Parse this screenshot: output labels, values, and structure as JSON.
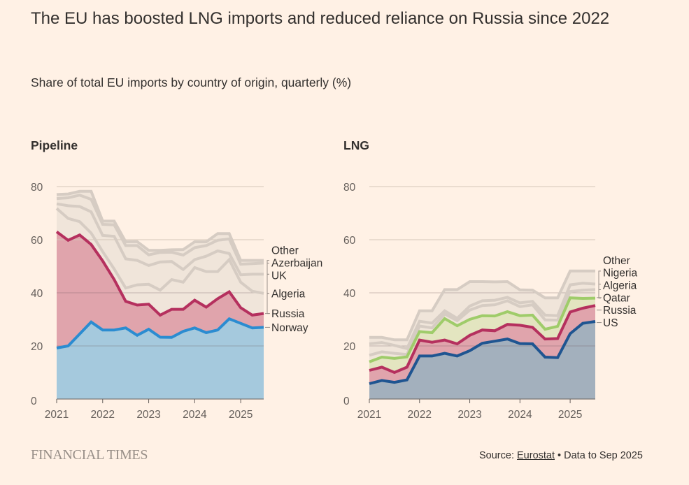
{
  "title": "The EU has boosted LNG imports and reduced reliance on Russia since 2022",
  "subtitle": "Share of total EU imports by country of origin, quarterly (%)",
  "footer": {
    "logo": "FINANCIAL TIMES",
    "source_prefix": "Source: ",
    "source_link": "Eurostat",
    "source_suffix": " • Data to Sep 2025"
  },
  "chart_data": [
    {
      "type": "area",
      "stacked": true,
      "title": "Pipeline",
      "xlabel": "",
      "ylabel": "",
      "x": [
        "2021Q1",
        "2021Q2",
        "2021Q3",
        "2021Q4",
        "2022Q1",
        "2022Q2",
        "2022Q3",
        "2022Q4",
        "2023Q1",
        "2023Q2",
        "2023Q3",
        "2023Q4",
        "2024Q1",
        "2024Q2",
        "2024Q3",
        "2024Q4",
        "2025Q1",
        "2025Q2",
        "2025Q3"
      ],
      "x_ticks": [
        "2021",
        "2022",
        "2023",
        "2024",
        "2025"
      ],
      "y_ticks": [
        0,
        20,
        40,
        60,
        80
      ],
      "ylim": [
        0,
        80
      ],
      "grid": true,
      "legend": "right-inline-labels",
      "value_format": "cumulative stacked top of each series (%)",
      "series": [
        {
          "name": "Norway",
          "color": "#2b8cd1",
          "fill": "#a5c9dd",
          "values": [
            19.2,
            20,
            24.5,
            29,
            26,
            26,
            26.8,
            24,
            26.3,
            23.3,
            23.2,
            25.5,
            26.8,
            25,
            26,
            30.2,
            28.5,
            26.8,
            27
          ]
        },
        {
          "name": "Russia",
          "color": "#b5305e",
          "fill": "#e0a4ac",
          "values": [
            63,
            59.8,
            61.8,
            58.2,
            52,
            45,
            36.8,
            35.4,
            35.7,
            31.6,
            33.8,
            33.8,
            37.2,
            34.6,
            37.8,
            40.4,
            34.4,
            31.6,
            32.2
          ]
        },
        {
          "name": "Algeria",
          "color": "#d6ccc3",
          "fill": "#f0e5da",
          "values": [
            71.8,
            68,
            66.8,
            62.5,
            55.5,
            49,
            41.8,
            43,
            43.2,
            41,
            45,
            44,
            49.5,
            48,
            48,
            52.5,
            44,
            40.6,
            39.8
          ]
        },
        {
          "name": "UK",
          "color": "#d6ccc3",
          "fill": "#f0e5da",
          "values": [
            73.5,
            72.8,
            72.5,
            70.5,
            61.6,
            61.3,
            52.8,
            52.2,
            50.3,
            51.6,
            51.8,
            48.8,
            52.5,
            53.8,
            55.8,
            54.8,
            46.8,
            47,
            47
          ]
        },
        {
          "name": "Azerbaijan",
          "color": "#d6ccc3",
          "fill": "#f0e5da",
          "values": [
            75.5,
            75.8,
            76.8,
            75.2,
            65.8,
            65.6,
            57.8,
            57.8,
            54.3,
            55.2,
            55.3,
            54.2,
            57,
            57.8,
            59.8,
            60.3,
            50.8,
            51,
            51.2
          ]
        },
        {
          "name": "Other",
          "color": "#d6ccc3",
          "fill": "#f0e5da",
          "values": [
            77,
            77.2,
            78.2,
            78.2,
            67,
            67,
            59.2,
            59.3,
            56,
            56,
            56.2,
            56.3,
            59.2,
            59.2,
            62.3,
            62.3,
            52.2,
            52.2,
            52.2
          ]
        }
      ],
      "labels": [
        {
          "text": "Other",
          "y": 56
        },
        {
          "text": "Azerbaijan",
          "y": 51.3
        },
        {
          "text": "UK",
          "y": 46.6
        },
        {
          "text": "Algeria",
          "y": 39.8
        },
        {
          "text": "Russia",
          "y": 32.2
        },
        {
          "text": "Norway",
          "y": 27
        }
      ]
    },
    {
      "type": "area",
      "stacked": true,
      "title": "LNG",
      "xlabel": "",
      "ylabel": "",
      "x": [
        "2021Q1",
        "2021Q2",
        "2021Q3",
        "2021Q4",
        "2022Q1",
        "2022Q2",
        "2022Q3",
        "2022Q4",
        "2023Q1",
        "2023Q2",
        "2023Q3",
        "2023Q4",
        "2024Q1",
        "2024Q2",
        "2024Q3",
        "2024Q4",
        "2025Q1",
        "2025Q2",
        "2025Q3"
      ],
      "x_ticks": [
        "2021",
        "2022",
        "2023",
        "2024",
        "2025"
      ],
      "y_ticks": [
        0,
        20,
        40,
        60,
        80
      ],
      "ylim": [
        0,
        80
      ],
      "grid": true,
      "legend": "right-inline-labels",
      "value_format": "cumulative stacked top of each series (%)",
      "series": [
        {
          "name": "US",
          "color": "#1f5591",
          "fill": "#a3b0bd",
          "values": [
            5.8,
            7,
            6.3,
            7.2,
            16.2,
            16.2,
            17.2,
            16.2,
            18.2,
            21,
            21.8,
            22.6,
            20.9,
            20.8,
            15.8,
            15.6,
            24.6,
            28.5,
            29.2
          ]
        },
        {
          "name": "Russia",
          "color": "#b5305e",
          "fill": "#e0a4ac",
          "values": [
            10.8,
            12,
            10,
            12,
            22.2,
            21.4,
            22.2,
            20.8,
            24,
            26,
            25.7,
            28.1,
            27.8,
            27,
            22.6,
            22.8,
            32.8,
            34.2,
            35.2
          ]
        },
        {
          "name": "Qatar",
          "color": "#9fcc6a",
          "fill": "#e3e5c0",
          "values": [
            14,
            15.8,
            15.3,
            15.9,
            25.4,
            25,
            30.3,
            27.6,
            30,
            31.4,
            31.3,
            32.9,
            31.4,
            31.6,
            26.3,
            27.4,
            38.1,
            37.9,
            38
          ]
        },
        {
          "name": "Algeria",
          "color": "#d6ccc3",
          "fill": "#f0e5da",
          "values": [
            16.5,
            17.8,
            17.2,
            16.8,
            27.5,
            26.8,
            32,
            29.5,
            33.5,
            35.2,
            35.5,
            37,
            34.8,
            35.5,
            29.8,
            29.7,
            40.5,
            41,
            41.2
          ]
        },
        {
          "name": "Nigeria",
          "color": "#d6ccc3",
          "fill": "#f0e5da",
          "values": [
            20.8,
            21.3,
            20.2,
            19,
            29.3,
            28.6,
            33.2,
            30.4,
            35,
            37,
            37.2,
            38.3,
            36.2,
            36.8,
            31.6,
            31.4,
            43,
            43.6,
            43.3
          ]
        },
        {
          "name": "Other",
          "color": "#d6ccc3",
          "fill": "#f0e5da",
          "values": [
            23.2,
            23.2,
            22.3,
            22.3,
            33.2,
            33.2,
            41.2,
            41.2,
            44.2,
            44.2,
            44.1,
            44.2,
            41.1,
            41,
            38.1,
            38.1,
            48.2,
            48.2,
            48.2
          ]
        }
      ],
      "labels": [
        {
          "text": "Other",
          "y": 52.3
        },
        {
          "text": "Nigeria",
          "y": 47.6
        },
        {
          "text": "Algeria",
          "y": 42.9
        },
        {
          "text": "Qatar",
          "y": 38.2
        },
        {
          "text": "Russia",
          "y": 33.5
        },
        {
          "text": "US",
          "y": 28.8
        }
      ]
    }
  ]
}
